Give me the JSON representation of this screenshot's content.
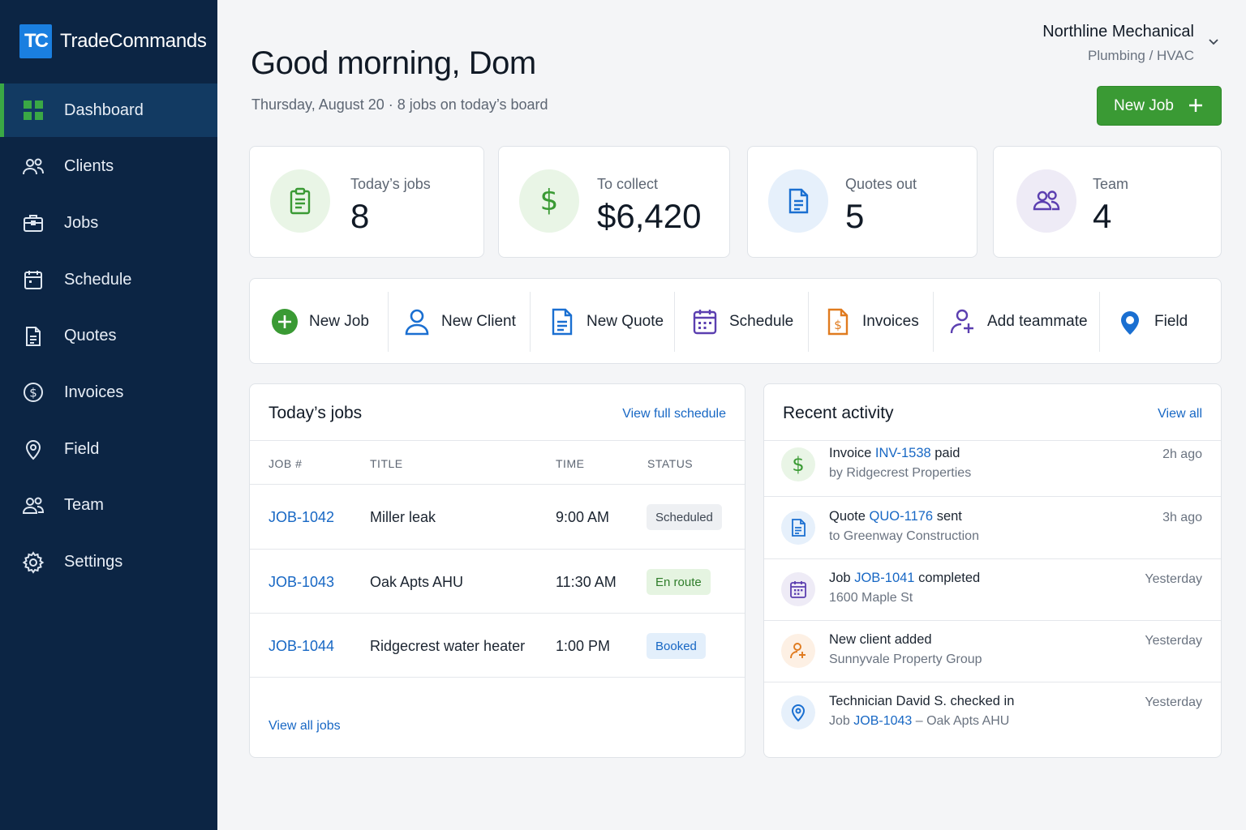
{
  "brand": {
    "logo_text": "TC",
    "name": "TradeCommands"
  },
  "sidebar": {
    "items": [
      {
        "label": "Dashboard",
        "icon": "grid-icon",
        "active": true
      },
      {
        "label": "Clients",
        "icon": "users-icon"
      },
      {
        "label": "Jobs",
        "icon": "briefcase-icon"
      },
      {
        "label": "Schedule",
        "icon": "calendar-icon"
      },
      {
        "label": "Quotes",
        "icon": "document-icon"
      },
      {
        "label": "Invoices",
        "icon": "dollar-circle-icon"
      },
      {
        "label": "Field",
        "icon": "map-pin-icon"
      },
      {
        "label": "Team",
        "icon": "team-icon"
      },
      {
        "label": "Settings",
        "icon": "gear-icon"
      }
    ]
  },
  "header": {
    "greeting": "Good morning, Dom",
    "subline": "Thursday, August 20 · 8 jobs on today’s board",
    "company_name": "Northline Mechanical",
    "company_type": "Plumbing / HVAC",
    "new_job_label": "New Job"
  },
  "stats": [
    {
      "label": "Today’s jobs",
      "value": "8",
      "icon": "clipboard-icon",
      "color": "#3a9a34",
      "bg": "#e9f5e6"
    },
    {
      "label": "To collect",
      "value": "$6,420",
      "icon": "dollar-icon",
      "color": "#3a9a34",
      "bg": "#e9f5e6"
    },
    {
      "label": "Quotes out",
      "value": "5",
      "icon": "document-icon",
      "color": "#1a6fd1",
      "bg": "#e6f0fb"
    },
    {
      "label": "Team",
      "value": "4",
      "icon": "team-icon",
      "color": "#5b3fb0",
      "bg": "#eeebf6"
    }
  ],
  "quick_actions": [
    {
      "label": "New Job",
      "icon": "plus-circle-icon"
    },
    {
      "label": "New Client",
      "icon": "user-icon"
    },
    {
      "label": "New Quote",
      "icon": "document-icon"
    },
    {
      "label": "Schedule",
      "icon": "calendar-icon"
    },
    {
      "label": "Invoices",
      "icon": "invoice-icon"
    },
    {
      "label": "Add teammate",
      "icon": "user-plus-icon"
    },
    {
      "label": "Field",
      "icon": "map-pin-icon"
    }
  ],
  "todays_jobs": {
    "title": "Today’s jobs",
    "link": "View full schedule",
    "columns": [
      "JOB #",
      "TITLE",
      "TIME",
      "STATUS"
    ],
    "rows": [
      {
        "job": "JOB-1042",
        "title": "Miller leak",
        "time": "9:00 AM",
        "status": "Scheduled"
      },
      {
        "job": "JOB-1043",
        "title": "Oak Apts AHU",
        "time": "11:30 AM",
        "status": "En route"
      },
      {
        "job": "JOB-1044",
        "title": "Ridgecrest water heater",
        "time": "1:00 PM",
        "status": "Booked"
      }
    ],
    "footer_link": "View all jobs"
  },
  "status_colors": {
    "Scheduled": {
      "bg": "#eef0f3",
      "fg": "#3d4652"
    },
    "En route": {
      "bg": "#e5f4e1",
      "fg": "#2f7d2a"
    },
    "Booked": {
      "bg": "#e3effb",
      "fg": "#1767c4"
    }
  },
  "recent_activity": {
    "title": "Recent activity",
    "link": "View all",
    "items": [
      {
        "pre": "Invoice ",
        "ref": "INV-1538",
        "post": " paid",
        "sub_pre": "by Ridgecrest Properties",
        "sub_ref": "",
        "sub_post": "",
        "time": "2h ago",
        "icon": "dollar-icon",
        "color": "#3a9a34",
        "bg": "#e9f5e6"
      },
      {
        "pre": "Quote ",
        "ref": "QUO-1176",
        "post": " sent",
        "sub_pre": "to Greenway Construction",
        "sub_ref": "",
        "sub_post": "",
        "time": "3h ago",
        "icon": "document-icon",
        "color": "#1a6fd1",
        "bg": "#e6f0fb"
      },
      {
        "pre": "Job ",
        "ref": "JOB-1041",
        "post": " completed",
        "sub_pre": "1600 Maple St",
        "sub_ref": "",
        "sub_post": "",
        "time": "Yesterday",
        "icon": "calendar-icon",
        "color": "#5b3fb0",
        "bg": "#eeebf6"
      },
      {
        "pre": "New client added",
        "ref": "",
        "post": "",
        "sub_pre": "Sunnyvale Property Group",
        "sub_ref": "",
        "sub_post": "",
        "time": "Yesterday",
        "icon": "user-plus-icon",
        "color": "#e07b1f",
        "bg": "#fdf0e4"
      },
      {
        "pre": "Technician David S. checked in",
        "ref": "",
        "post": "",
        "sub_pre": "Job ",
        "sub_ref": "JOB-1043",
        "sub_post": " – Oak Apts AHU",
        "time": "Yesterday",
        "icon": "map-pin-icon",
        "color": "#1a6fd1",
        "bg": "#e6f0fb"
      }
    ]
  }
}
